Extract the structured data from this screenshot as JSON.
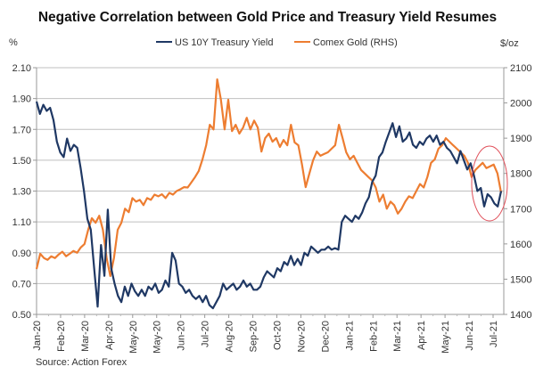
{
  "chart_data": {
    "type": "line",
    "title": "Negative Correlation between Gold Price and Treasury Yield Resumes",
    "source": "Source: Action Forex",
    "left_axis": {
      "unit_label": "%",
      "ylim": [
        0.5,
        2.1
      ],
      "ticks": [
        "0.50",
        "0.70",
        "0.90",
        "1.10",
        "1.30",
        "1.50",
        "1.70",
        "1.90",
        "2.10"
      ],
      "tick_values": [
        0.5,
        0.7,
        0.9,
        1.1,
        1.3,
        1.5,
        1.7,
        1.9,
        2.1
      ]
    },
    "right_axis": {
      "unit_label": "$/oz",
      "ylim": [
        1400,
        2100
      ],
      "ticks": [
        "1400",
        "1500",
        "1600",
        "1700",
        "1800",
        "1900",
        "2000",
        "2100"
      ],
      "tick_values": [
        1400,
        1500,
        1600,
        1700,
        1800,
        1900,
        2000,
        2100
      ]
    },
    "x_tick_labels": [
      "Jan-20",
      "Feb-20",
      "Mar-20",
      "Apr-20",
      "May-20",
      "May-20",
      "Jun-20",
      "Jul-20",
      "Aug-20",
      "Sep-20",
      "Oct-20",
      "Nov-20",
      "Dec-20",
      "Jan-21",
      "Feb-21",
      "Mar-21",
      "Apr-21",
      "May-21",
      "Jun-21",
      "Jul-21"
    ],
    "x_range_note": "Series sampled at equal spacing from Jan-20 to mid Jul-21",
    "grid": true,
    "legend_position": "top",
    "annotation": {
      "type": "ellipse",
      "description": "Red circle highlighting Jun-Jul 2021 divergence",
      "color": "#e0505a"
    },
    "series": [
      {
        "name": "US 10Y Treasury Yield",
        "axis": "left",
        "color": "#1f3864",
        "values": [
          1.88,
          1.8,
          1.86,
          1.82,
          1.84,
          1.76,
          1.62,
          1.55,
          1.52,
          1.64,
          1.56,
          1.6,
          1.58,
          1.45,
          1.3,
          1.12,
          1.05,
          0.8,
          0.55,
          0.95,
          0.75,
          1.18,
          0.8,
          0.7,
          0.62,
          0.58,
          0.68,
          0.62,
          0.7,
          0.65,
          0.62,
          0.66,
          0.62,
          0.68,
          0.66,
          0.7,
          0.64,
          0.66,
          0.72,
          0.68,
          0.9,
          0.85,
          0.7,
          0.68,
          0.64,
          0.66,
          0.62,
          0.6,
          0.62,
          0.58,
          0.62,
          0.56,
          0.54,
          0.58,
          0.62,
          0.7,
          0.66,
          0.68,
          0.7,
          0.66,
          0.68,
          0.72,
          0.68,
          0.7,
          0.66,
          0.66,
          0.68,
          0.74,
          0.78,
          0.76,
          0.74,
          0.8,
          0.78,
          0.84,
          0.82,
          0.88,
          0.82,
          0.86,
          0.82,
          0.9,
          0.88,
          0.94,
          0.92,
          0.9,
          0.92,
          0.92,
          0.94,
          0.92,
          0.93,
          0.92,
          1.1,
          1.14,
          1.12,
          1.1,
          1.14,
          1.12,
          1.16,
          1.22,
          1.26,
          1.36,
          1.4,
          1.52,
          1.55,
          1.62,
          1.68,
          1.74,
          1.65,
          1.72,
          1.62,
          1.64,
          1.68,
          1.6,
          1.58,
          1.62,
          1.6,
          1.64,
          1.66,
          1.62,
          1.66,
          1.6,
          1.62,
          1.58,
          1.56,
          1.52,
          1.48,
          1.56,
          1.5,
          1.44,
          1.48,
          1.4,
          1.3,
          1.32,
          1.2,
          1.28,
          1.26,
          1.22,
          1.2,
          1.3
        ]
      },
      {
        "name": "Comex Gold (RHS)",
        "axis": "right",
        "color": "#ed7d31",
        "values": [
          1529,
          1572,
          1560,
          1555,
          1565,
          1560,
          1570,
          1578,
          1565,
          1572,
          1580,
          1575,
          1590,
          1600,
          1640,
          1673,
          1660,
          1680,
          1640,
          1560,
          1509,
          1560,
          1640,
          1660,
          1700,
          1690,
          1730,
          1720,
          1725,
          1710,
          1730,
          1725,
          1740,
          1735,
          1741,
          1730,
          1745,
          1740,
          1750,
          1755,
          1761,
          1760,
          1775,
          1790,
          1807,
          1840,
          1880,
          1938,
          1925,
          2067,
          2010,
          1925,
          2009,
          1920,
          1938,
          1913,
          1930,
          1958,
          1925,
          1950,
          1930,
          1862,
          1900,
          1913,
          1890,
          1900,
          1875,
          1895,
          1880,
          1938,
          1888,
          1880,
          1825,
          1761,
          1800,
          1837,
          1862,
          1850,
          1855,
          1860,
          1870,
          1880,
          1938,
          1900,
          1860,
          1840,
          1850,
          1830,
          1810,
          1800,
          1790,
          1780,
          1760,
          1720,
          1740,
          1700,
          1720,
          1710,
          1686,
          1700,
          1720,
          1735,
          1730,
          1750,
          1770,
          1760,
          1790,
          1830,
          1840,
          1870,
          1880,
          1900,
          1890,
          1880,
          1870,
          1860,
          1850,
          1830,
          1790,
          1810,
          1820,
          1830,
          1815,
          1820,
          1825,
          1800,
          1745
        ]
      }
    ]
  }
}
